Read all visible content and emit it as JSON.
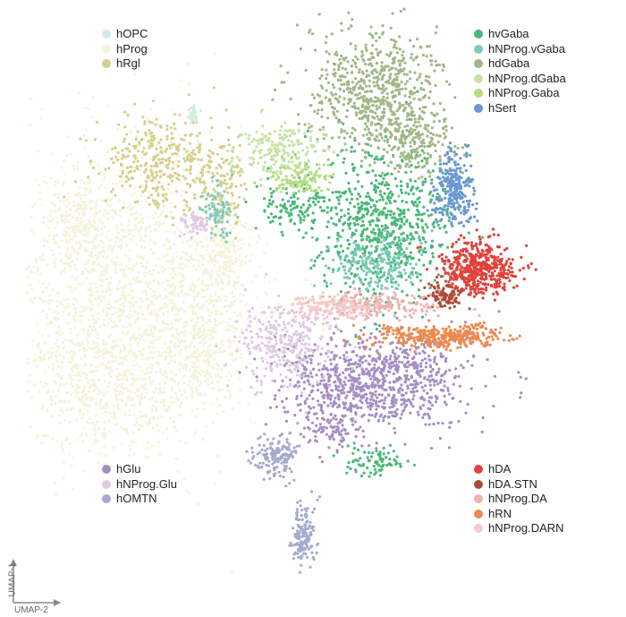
{
  "chart_data": {
    "type": "scatter",
    "title": "",
    "xlabel": "UMAP-2",
    "ylabel": "UMAP-1",
    "grid": false,
    "legends": [
      {
        "placement": "top-left",
        "entries": [
          "hOPC",
          "hProg",
          "hRgl"
        ]
      },
      {
        "placement": "top-right",
        "entries": [
          "hvGaba",
          "hNProg.vGaba",
          "hdGaba",
          "hNProg.dGaba",
          "hNProg.Gaba",
          "hSert"
        ]
      },
      {
        "placement": "bottom-left",
        "entries": [
          "hGlu",
          "hNProg.Glu",
          "hOMTN"
        ]
      },
      {
        "placement": "bottom-right",
        "entries": [
          "hDA",
          "hDA.STN",
          "hNProg.DA",
          "hRN",
          "hNProg.DARN"
        ]
      }
    ],
    "series": [
      {
        "name": "hOPC",
        "color": "#d3ece2",
        "clusters": [
          [
            216,
            128,
            5,
            10,
            40
          ]
        ]
      },
      {
        "name": "hProg",
        "color": "#f4f4dc",
        "clusters": [
          [
            150,
            330,
            110,
            150,
            1400
          ],
          [
            110,
            420,
            70,
            80,
            500
          ],
          [
            230,
            380,
            40,
            60,
            300
          ],
          [
            90,
            250,
            40,
            50,
            250
          ],
          [
            250,
            280,
            30,
            40,
            200
          ]
        ]
      },
      {
        "name": "hRgl",
        "color": "#d7d08c",
        "clusters": [
          [
            180,
            180,
            60,
            40,
            350
          ],
          [
            250,
            205,
            25,
            40,
            120
          ]
        ]
      },
      {
        "name": "hvGaba",
        "color": "#4ab87a",
        "clusters": [
          [
            430,
            250,
            60,
            70,
            750
          ],
          [
            330,
            230,
            40,
            20,
            120
          ],
          [
            420,
            515,
            30,
            15,
            80
          ]
        ]
      },
      {
        "name": "hNProg.vGaba",
        "color": "#7ccaba",
        "clusters": [
          [
            420,
            295,
            45,
            25,
            200
          ],
          [
            245,
            240,
            15,
            25,
            80
          ]
        ]
      },
      {
        "name": "hdGaba",
        "color": "#a1b786",
        "clusters": [
          [
            420,
            100,
            60,
            60,
            650
          ],
          [
            460,
            160,
            35,
            30,
            200
          ]
        ]
      },
      {
        "name": "hNProg.dGaba",
        "color": "#c8e3a6",
        "clusters": [
          [
            310,
            170,
            40,
            25,
            200
          ]
        ]
      },
      {
        "name": "hNProg.Gaba",
        "color": "#b3dd82",
        "clusters": [
          [
            335,
            200,
            30,
            15,
            120
          ]
        ]
      },
      {
        "name": "hSert",
        "color": "#6a97d3",
        "clusters": [
          [
            508,
            210,
            20,
            35,
            250
          ]
        ]
      },
      {
        "name": "hGlu",
        "color": "#a58ec4",
        "clusters": [
          [
            420,
            425,
            85,
            45,
            900
          ],
          [
            370,
            480,
            25,
            15,
            80
          ]
        ]
      },
      {
        "name": "hNProg.Glu",
        "color": "#dfc9e3",
        "clusters": [
          [
            320,
            385,
            40,
            40,
            300
          ],
          [
            220,
            250,
            20,
            10,
            60
          ]
        ]
      },
      {
        "name": "hOMTN",
        "color": "#a6abcd",
        "clusters": [
          [
            310,
            510,
            20,
            20,
            150
          ],
          [
            340,
            600,
            12,
            30,
            150
          ]
        ]
      },
      {
        "name": "hDA",
        "color": "#df433b",
        "clusters": [
          [
            535,
            300,
            35,
            25,
            500
          ]
        ]
      },
      {
        "name": "hDA.STN",
        "color": "#ac4c37",
        "clusters": [
          [
            495,
            330,
            18,
            10,
            100
          ]
        ]
      },
      {
        "name": "hNProg.DA",
        "color": "#edb3b0",
        "clusters": [
          [
            420,
            340,
            60,
            12,
            200
          ]
        ]
      },
      {
        "name": "hRN",
        "color": "#ec8a4e",
        "clusters": [
          [
            500,
            375,
            60,
            10,
            350
          ]
        ]
      },
      {
        "name": "hNProg.DARN",
        "color": "#f4cbc8",
        "clusters": [
          [
            370,
            345,
            45,
            10,
            150
          ]
        ]
      }
    ]
  }
}
